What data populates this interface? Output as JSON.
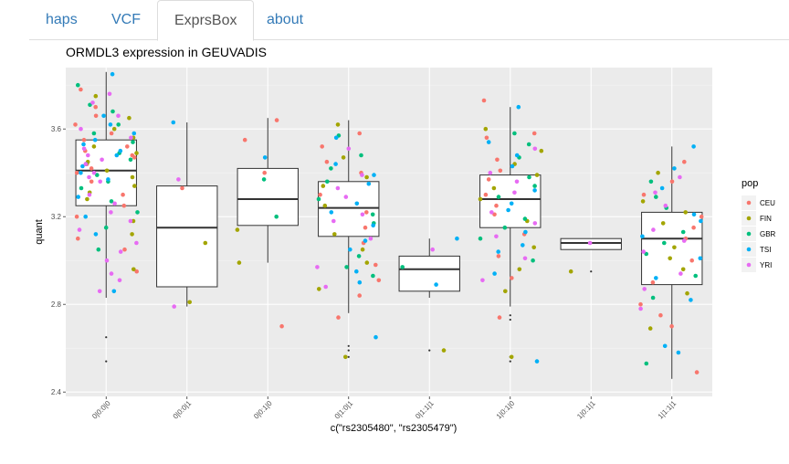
{
  "tabs": [
    {
      "label": "haps"
    },
    {
      "label": "VCF"
    },
    {
      "label": "ExprsBox",
      "active": true
    },
    {
      "label": "about"
    }
  ],
  "chart_data": {
    "type": "box",
    "title": "ORMDL3 expression in GEUVADIS",
    "xlabel": "c(\"rs2305480\", \"rs2305479\")",
    "ylabel": "quant",
    "ylim": [
      2.38,
      3.88
    ],
    "yticks": [
      2.4,
      2.8,
      3.2,
      3.6
    ],
    "yticklabels": [
      "2.4",
      "2.8",
      "3.2",
      "3.6"
    ],
    "grid": true,
    "legend": {
      "title": "pop",
      "position": "right",
      "entries": [
        "CEU",
        "FIN",
        "GBR",
        "TSI",
        "YRI"
      ]
    },
    "colors": {
      "CEU": "#F8766D",
      "FIN": "#A3A500",
      "GBR": "#00BF7D",
      "TSI": "#00B0F6",
      "YRI": "#E76BF3"
    },
    "categories": [
      "0|0:0|0",
      "0|0:0|1",
      "0|0:1|0",
      "0|1:0|1",
      "0|1:1|1",
      "1|0:1|0",
      "1|0:1|1",
      "1|1:1|1"
    ],
    "boxes": [
      {
        "category": "0|0:0|0",
        "whisker_low": 2.83,
        "q1": 3.25,
        "median": 3.41,
        "q3": 3.55,
        "whisker_high": 3.86,
        "outliers": [
          2.65,
          2.54
        ]
      },
      {
        "category": "0|0:0|1",
        "whisker_low": 2.79,
        "q1": 2.88,
        "median": 3.15,
        "q3": 3.34,
        "whisker_high": 3.63,
        "outliers": []
      },
      {
        "category": "0|0:1|0",
        "whisker_low": 2.99,
        "q1": 3.16,
        "median": 3.28,
        "q3": 3.42,
        "whisker_high": 3.65,
        "outliers": []
      },
      {
        "category": "0|1:0|1",
        "whisker_low": 2.76,
        "q1": 3.11,
        "median": 3.24,
        "q3": 3.36,
        "whisker_high": 3.64,
        "outliers": [
          2.61,
          2.59,
          2.56
        ]
      },
      {
        "category": "0|1:1|1",
        "whisker_low": 2.83,
        "q1": 2.86,
        "median": 2.96,
        "q3": 3.02,
        "whisker_high": 3.1,
        "outliers": [
          2.59
        ]
      },
      {
        "category": "1|0:1|0",
        "whisker_low": 2.79,
        "q1": 3.15,
        "median": 3.28,
        "q3": 3.39,
        "whisker_high": 3.7,
        "outliers": [
          2.75,
          2.73,
          2.56,
          2.54
        ]
      },
      {
        "category": "1|0:1|1",
        "whisker_low": 3.05,
        "q1": 3.05,
        "median": 3.08,
        "q3": 3.1,
        "whisker_high": 3.1,
        "outliers": [
          2.95
        ]
      },
      {
        "category": "1|1:1|1",
        "whisker_low": 2.46,
        "q1": 2.89,
        "median": 3.1,
        "q3": 3.22,
        "whisker_high": 3.52,
        "outliers": []
      }
    ],
    "points": [
      {
        "x": "0|0:0|0",
        "pop": "CEU",
        "y": [
          3.78,
          3.52,
          3.47,
          3.4,
          3.62,
          3.1,
          3.3,
          3.58,
          3.48,
          3.25,
          3.7,
          3.44,
          3.36,
          3.05,
          2.95,
          3.55,
          3.66,
          3.2,
          3.42,
          3.5
        ]
      },
      {
        "x": "0|0:0|0",
        "pop": "FIN",
        "y": [
          3.65,
          3.45,
          3.38,
          3.31,
          3.18,
          2.96,
          3.52,
          3.6,
          3.41,
          3.28,
          3.12,
          3.75,
          3.49,
          3.34,
          3.56
        ]
      },
      {
        "x": "0|0:0|0",
        "pop": "GBR",
        "y": [
          3.8,
          3.54,
          3.46,
          3.39,
          3.33,
          3.62,
          3.27,
          3.71,
          3.44,
          3.22,
          3.58,
          3.36,
          3.49,
          3.68,
          3.15,
          3.05
        ]
      },
      {
        "x": "0|0:0|0",
        "pop": "TSI",
        "y": [
          3.85,
          3.55,
          3.5,
          3.43,
          3.37,
          3.29,
          3.62,
          3.2,
          3.48,
          3.58,
          3.12,
          2.86,
          3.66,
          3.4,
          3.53
        ]
      },
      {
        "x": "0|0:0|0",
        "pop": "YRI",
        "y": [
          3.76,
          3.6,
          3.51,
          3.46,
          3.38,
          3.3,
          3.22,
          3.14,
          3.04,
          2.94,
          2.86,
          3.72,
          3.56,
          3.44,
          3.36,
          3.26,
          3.18,
          3.08,
          3.0,
          2.91,
          3.66,
          3.48,
          3.4
        ]
      },
      {
        "x": "0|0:0|1",
        "pop": "CEU",
        "y": [
          3.33
        ]
      },
      {
        "x": "0|0:0|1",
        "pop": "FIN",
        "y": [
          3.08,
          2.81
        ]
      },
      {
        "x": "0|0:0|1",
        "pop": "GBR",
        "y": []
      },
      {
        "x": "0|0:0|1",
        "pop": "TSI",
        "y": [
          3.63
        ]
      },
      {
        "x": "0|0:0|1",
        "pop": "YRI",
        "y": [
          3.37,
          2.79
        ]
      },
      {
        "x": "0|0:1|0",
        "pop": "CEU",
        "y": [
          3.64,
          3.55,
          3.4,
          2.7
        ]
      },
      {
        "x": "0|0:1|0",
        "pop": "FIN",
        "y": [
          2.99,
          3.14
        ]
      },
      {
        "x": "0|0:1|0",
        "pop": "GBR",
        "y": [
          3.37,
          3.2
        ]
      },
      {
        "x": "0|0:1|0",
        "pop": "TSI",
        "y": [
          3.47
        ]
      },
      {
        "x": "0|0:1|0",
        "pop": "YRI",
        "y": []
      },
      {
        "x": "0|1:0|1",
        "pop": "CEU",
        "y": [
          3.58,
          3.52,
          3.4,
          3.3,
          3.22,
          3.08,
          2.98,
          2.84,
          2.74,
          3.45,
          3.15,
          2.91
        ]
      },
      {
        "x": "0|1:0|1",
        "pop": "FIN",
        "y": [
          3.62,
          3.47,
          3.34,
          3.25,
          3.12,
          2.99,
          2.87,
          2.56,
          3.38,
          3.05
        ]
      },
      {
        "x": "0|1:0|1",
        "pop": "GBR",
        "y": [
          3.57,
          3.48,
          3.36,
          3.28,
          3.17,
          3.02,
          2.93,
          3.42,
          3.21,
          2.97
        ]
      },
      {
        "x": "0|1:0|1",
        "pop": "TSI",
        "y": [
          3.56,
          3.44,
          3.35,
          3.26,
          3.16,
          3.05,
          2.95,
          2.65,
          3.39,
          3.22,
          3.09,
          2.9
        ]
      },
      {
        "x": "0|1:0|1",
        "pop": "YRI",
        "y": [
          3.51,
          3.39,
          3.29,
          3.21,
          3.1,
          2.97,
          2.88,
          3.33,
          3.18
        ]
      },
      {
        "x": "0|1:1|1",
        "pop": "CEU",
        "y": []
      },
      {
        "x": "0|1:1|1",
        "pop": "FIN",
        "y": [
          2.59
        ]
      },
      {
        "x": "0|1:1|1",
        "pop": "GBR",
        "y": [
          2.97
        ]
      },
      {
        "x": "0|1:1|1",
        "pop": "TSI",
        "y": [
          3.1,
          2.89
        ]
      },
      {
        "x": "0|1:1|1",
        "pop": "YRI",
        "y": [
          3.05
        ]
      },
      {
        "x": "1|0:1|0",
        "pop": "CEU",
        "y": [
          3.73,
          3.56,
          3.46,
          3.37,
          3.3,
          3.21,
          3.12,
          3.02,
          2.92,
          2.74,
          3.58,
          3.41,
          3.25
        ]
      },
      {
        "x": "1|0:1|0",
        "pop": "FIN",
        "y": [
          3.6,
          3.5,
          3.39,
          3.28,
          3.18,
          3.06,
          2.96,
          2.86,
          2.56,
          3.44,
          3.33
        ]
      },
      {
        "x": "1|0:1|0",
        "pop": "GBR",
        "y": [
          3.58,
          3.47,
          3.38,
          3.29,
          3.19,
          3.1,
          3.0,
          3.53,
          3.34,
          3.15
        ]
      },
      {
        "x": "1|0:1|0",
        "pop": "TSI",
        "y": [
          3.7,
          3.54,
          3.43,
          3.32,
          3.23,
          3.13,
          3.04,
          2.94,
          2.54,
          3.48,
          3.26,
          3.07
        ]
      },
      {
        "x": "1|0:1|0",
        "pop": "YRI",
        "y": [
          3.51,
          3.4,
          3.31,
          3.22,
          3.11,
          3.01,
          2.91,
          3.36,
          3.17
        ]
      },
      {
        "x": "1|0:1|1",
        "pop": "CEU",
        "y": []
      },
      {
        "x": "1|0:1|1",
        "pop": "FIN",
        "y": [
          2.95
        ]
      },
      {
        "x": "1|0:1|1",
        "pop": "GBR",
        "y": []
      },
      {
        "x": "1|0:1|1",
        "pop": "TSI",
        "y": []
      },
      {
        "x": "1|0:1|1",
        "pop": "YRI",
        "y": [
          3.08
        ]
      },
      {
        "x": "1|1:1|1",
        "pop": "CEU",
        "y": [
          3.45,
          3.3,
          3.2,
          3.1,
          3.0,
          2.9,
          2.8,
          2.7,
          2.49,
          3.36,
          3.15,
          2.75
        ]
      },
      {
        "x": "1|1:1|1",
        "pop": "FIN",
        "y": [
          3.4,
          3.27,
          3.17,
          3.06,
          2.96,
          2.85,
          2.69,
          3.22,
          3.01
        ]
      },
      {
        "x": "1|1:1|1",
        "pop": "GBR",
        "y": [
          3.36,
          3.24,
          3.13,
          3.03,
          2.93,
          2.83,
          2.53,
          3.29,
          3.08
        ]
      },
      {
        "x": "1|1:1|1",
        "pop": "TSI",
        "y": [
          3.52,
          3.33,
          3.21,
          3.11,
          3.01,
          2.92,
          2.82,
          2.61,
          3.42,
          3.18,
          2.58
        ]
      },
      {
        "x": "1|1:1|1",
        "pop": "YRI",
        "y": [
          3.38,
          3.25,
          3.14,
          3.04,
          2.94,
          2.87,
          2.78,
          3.31,
          3.09
        ]
      }
    ]
  }
}
